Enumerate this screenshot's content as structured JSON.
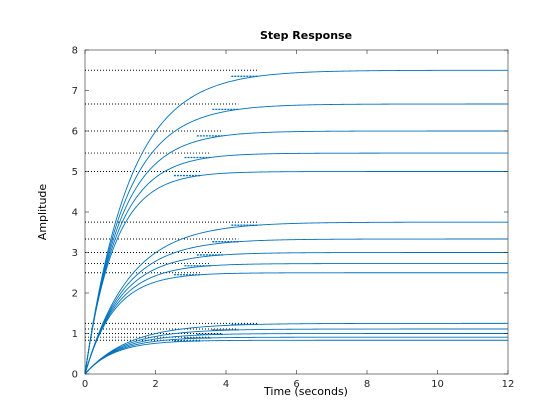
{
  "chart_data": {
    "type": "line",
    "title": "Step Response",
    "xlabel": "Time (seconds)",
    "ylabel": "Amplitude",
    "xlim": [
      0,
      12
    ],
    "ylim": [
      0,
      8
    ],
    "xticks": [
      "0",
      "2",
      "4",
      "6",
      "8",
      "10",
      "12"
    ],
    "yticks": [
      "0",
      "1",
      "2",
      "3",
      "4",
      "5",
      "6",
      "7",
      "8"
    ],
    "grid": false,
    "line_color": "#0072BD",
    "note": "",
    "series": [
      {
        "final_value": 0.8333,
        "time_constant": 0.833,
        "settling_time": 3.26,
        "dotted_reference": true
      },
      {
        "final_value": 0.9091,
        "time_constant": 0.909,
        "settling_time": 3.56,
        "dotted_reference": true
      },
      {
        "final_value": 1.0,
        "time_constant": 1.0,
        "settling_time": 3.91,
        "dotted_reference": true
      },
      {
        "final_value": 1.1111,
        "time_constant": 1.111,
        "settling_time": 4.35,
        "dotted_reference": true
      },
      {
        "final_value": 1.25,
        "time_constant": 1.25,
        "settling_time": 4.89,
        "dotted_reference": true
      },
      {
        "final_value": 2.5,
        "time_constant": 0.833,
        "settling_time": 3.26,
        "dotted_reference": true
      },
      {
        "final_value": 2.7273,
        "time_constant": 0.909,
        "settling_time": 3.56,
        "dotted_reference": true
      },
      {
        "final_value": 3.0,
        "time_constant": 1.0,
        "settling_time": 3.91,
        "dotted_reference": true
      },
      {
        "final_value": 3.3333,
        "time_constant": 1.111,
        "settling_time": 4.35,
        "dotted_reference": true
      },
      {
        "final_value": 3.75,
        "time_constant": 1.25,
        "settling_time": 4.89,
        "dotted_reference": true
      },
      {
        "final_value": 5.0,
        "time_constant": 0.833,
        "settling_time": 3.26,
        "dotted_reference": true
      },
      {
        "final_value": 5.4545,
        "time_constant": 0.909,
        "settling_time": 3.56,
        "dotted_reference": true
      },
      {
        "final_value": 6.0,
        "time_constant": 1.0,
        "settling_time": 3.91,
        "dotted_reference": true
      },
      {
        "final_value": 6.6667,
        "time_constant": 1.111,
        "settling_time": 4.35,
        "dotted_reference": true
      },
      {
        "final_value": 7.5,
        "time_constant": 1.25,
        "settling_time": 4.89,
        "dotted_reference": true
      }
    ]
  }
}
